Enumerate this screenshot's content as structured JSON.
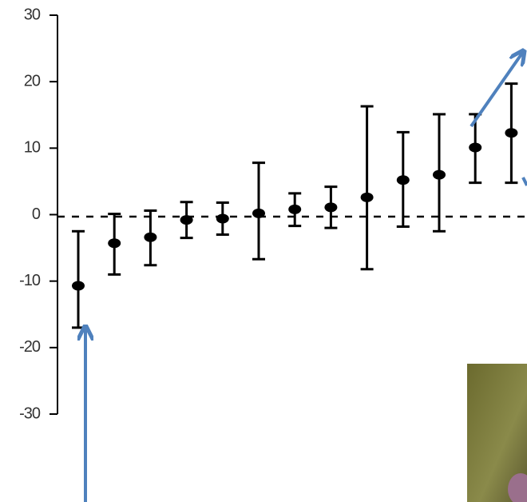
{
  "chart_data": {
    "type": "errorbar",
    "categories": [
      null,
      null,
      null,
      null,
      null,
      null,
      null,
      null,
      null,
      null,
      null,
      null,
      null
    ],
    "values": [
      -10.7,
      -4.3,
      -3.4,
      -0.8,
      -0.6,
      0.2,
      0.8,
      1.1,
      2.6,
      5.2,
      6,
      10.1,
      12.3
    ],
    "lower": [
      -17,
      -9,
      -7.6,
      -3.5,
      -3,
      -6.7,
      -1.7,
      -2,
      -8.2,
      -1.8,
      -2.5,
      4.8,
      4.8
    ],
    "upper": [
      -2.5,
      0.1,
      0.6,
      1.9,
      1.8,
      7.8,
      3.2,
      4.2,
      16.3,
      12.4,
      15.1,
      15.1,
      19.7
    ],
    "color": "#000000",
    "reference_line": -0.3,
    "ylim": [
      -30,
      30
    ],
    "yticks": [
      -30,
      -20,
      -10,
      0,
      10,
      20,
      30
    ]
  }
}
